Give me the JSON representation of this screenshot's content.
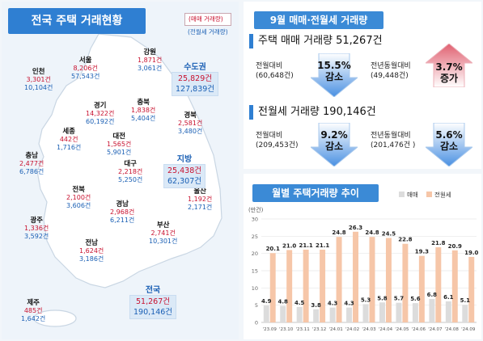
{
  "map_panel": {
    "title": "전국 주택 거래현황",
    "legend_sale": "(매매 거래량)",
    "legend_jeonse": "(전월세 거래량)",
    "regions": [
      {
        "key": "gangwon",
        "name": "강원",
        "sale": "1,871건",
        "jeonse": "3,061건"
      },
      {
        "key": "seoul",
        "name": "서울",
        "sale": "8,206건",
        "jeonse": "57,543건"
      },
      {
        "key": "incheon",
        "name": "인천",
        "sale": "3,301건",
        "jeonse": "10,104건"
      },
      {
        "key": "gyeonggi",
        "name": "경기",
        "sale": "14,322건",
        "jeonse": "60,192건"
      },
      {
        "key": "chungbuk",
        "name": "충북",
        "sale": "1,838건",
        "jeonse": "5,404건"
      },
      {
        "key": "sejong",
        "name": "세종",
        "sale": "442건",
        "jeonse": "1,716건"
      },
      {
        "key": "gyeongbuk",
        "name": "경북",
        "sale": "2,581건",
        "jeonse": "3,480건"
      },
      {
        "key": "daejeon",
        "name": "대전",
        "sale": "1,565건",
        "jeonse": "5,901건"
      },
      {
        "key": "chungnam",
        "name": "충남",
        "sale": "2,477건",
        "jeonse": "6,786건"
      },
      {
        "key": "daegu",
        "name": "대구",
        "sale": "2,218건",
        "jeonse": "5,250건"
      },
      {
        "key": "jeonbuk",
        "name": "전북",
        "sale": "2,100건",
        "jeonse": "3,606건"
      },
      {
        "key": "ulsan",
        "name": "울산",
        "sale": "1,192건",
        "jeonse": "2,171건"
      },
      {
        "key": "gyeongnam",
        "name": "경남",
        "sale": "2,968건",
        "jeonse": "6,211건"
      },
      {
        "key": "gwangju",
        "name": "광주",
        "sale": "1,336건",
        "jeonse": "3,592건"
      },
      {
        "key": "busan",
        "name": "부산",
        "sale": "2,741건",
        "jeonse": "10,301건"
      },
      {
        "key": "jeonnam",
        "name": "전남",
        "sale": "1,624건",
        "jeonse": "3,186건"
      },
      {
        "key": "jeju",
        "name": "제주",
        "sale": "485건",
        "jeonse": "1,642건"
      }
    ],
    "summaries": {
      "capital": {
        "name": "수도권",
        "sale": "25,829건",
        "jeonse": "127,839건"
      },
      "local": {
        "name": "지방",
        "sale": "25,438건",
        "jeonse": "62,307건"
      },
      "nation": {
        "name": "전국",
        "sale": "51,267건",
        "jeonse": "190,146건"
      }
    }
  },
  "summary_panel": {
    "title": "9월 매매·전월세 거래량",
    "sale": {
      "heading": "주택 매매 거래량 51,267건",
      "mom_label": "전월대비",
      "mom_base": "(60,648건)",
      "mom_rate": "15.5%",
      "mom_dir": "감소",
      "yoy_label": "전년동월대비",
      "yoy_base": "(49,448건)",
      "yoy_rate": "3.7%",
      "yoy_dir": "증가"
    },
    "jeonse": {
      "heading": "전월세 거래량 190,146건",
      "mom_label": "전월대비",
      "mom_base": "(209,453건)",
      "mom_rate": "9.2%",
      "mom_dir": "감소",
      "yoy_label": "전년동월대비",
      "yoy_base": "(201,476건 )",
      "yoy_rate": "5.6%",
      "yoy_dir": "감소"
    },
    "colors": {
      "decrease": "#4a90e2",
      "increase": "#e06070"
    }
  },
  "chart_panel": {
    "title": "월별 주택거래량 추이",
    "legend_sale": "매매",
    "legend_jeonse": "전월세"
  },
  "chart_data": {
    "type": "bar",
    "title": "월별 주택거래량 추이",
    "ylabel": "(만건)",
    "ylim": [
      0,
      30
    ],
    "yticks": [
      0,
      5,
      10,
      15,
      20,
      25,
      30
    ],
    "categories": [
      "'23.09",
      "'23.10",
      "'23.11",
      "'23.12",
      "'24.01",
      "'24.02",
      "'24.03",
      "'24.04",
      "'24.05",
      "'24.06",
      "'24.07",
      "'24.08",
      "'24.09"
    ],
    "series": [
      {
        "name": "매매",
        "color": "#dcdcdc",
        "values": [
          4.9,
          4.8,
          4.5,
          3.8,
          4.3,
          4.3,
          5.3,
          5.8,
          5.7,
          5.6,
          6.8,
          6.1,
          5.1
        ],
        "labels": [
          "4.9",
          "4.8",
          "4.5",
          "3.8",
          "4.3",
          "4.3",
          "5.3",
          "5.8",
          "5.7",
          "5.6",
          "6.8",
          "6.1",
          "5.1"
        ]
      },
      {
        "name": "전월세",
        "color": "#f6c6a8",
        "values": [
          20.1,
          21.0,
          21.1,
          21.1,
          24.8,
          26.3,
          24.8,
          24.5,
          22.8,
          19.3,
          21.8,
          20.9,
          19.0
        ],
        "labels": [
          "20.1",
          "21.0",
          "21.1",
          "21.1",
          "24.8",
          "26.3",
          "24.8",
          "24.5",
          "22.8",
          "19.3",
          "21.8",
          "20.9",
          "19.0"
        ]
      }
    ],
    "grid": true,
    "legend": "top-right"
  }
}
